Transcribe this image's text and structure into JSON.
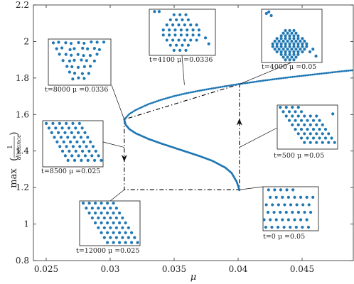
{
  "chart_data": {
    "type": "scatter",
    "xlabel": "μ",
    "ylabel_prefix": "max",
    "ylabel_numerator": "1",
    "ylabel_denominator": "distance",
    "xlim": [
      0.024,
      0.049
    ],
    "ylim": [
      0.8,
      2.2
    ],
    "xticks": [
      0.025,
      0.03,
      0.035,
      0.04,
      0.045
    ],
    "xtick_labels": [
      "0.025",
      "0.03",
      "0.035",
      "0.04",
      "0.045"
    ],
    "yticks": [
      0.8,
      1.0,
      1.2,
      1.4,
      1.6,
      1.8,
      2.0,
      2.2
    ],
    "ytick_labels": [
      "0.8",
      "1",
      "1.2",
      "1.4",
      "1.6",
      "1.8",
      "2",
      "2.2"
    ],
    "grid": false,
    "series_color": "#1f77b4",
    "branch_upper": {
      "x": [
        0.0311,
        0.0315,
        0.032,
        0.033,
        0.034,
        0.035,
        0.036,
        0.037,
        0.038,
        0.039,
        0.04,
        0.041,
        0.042,
        0.043,
        0.044,
        0.045,
        0.046,
        0.047,
        0.048,
        0.0489
      ],
      "y": [
        1.573,
        1.603,
        1.625,
        1.657,
        1.681,
        1.701,
        1.717,
        1.731,
        1.743,
        1.755,
        1.766,
        1.776,
        1.786,
        1.795,
        1.804,
        1.812,
        1.82,
        1.828,
        1.836,
        1.842
      ]
    },
    "branch_middle": {
      "x": [
        0.0311,
        0.0312,
        0.0315,
        0.032,
        0.033,
        0.034,
        0.035,
        0.036,
        0.037,
        0.038,
        0.039,
        0.0395,
        0.0399,
        0.0401
      ],
      "y": [
        1.573,
        1.545,
        1.52,
        1.497,
        1.466,
        1.441,
        1.418,
        1.395,
        1.372,
        1.346,
        1.309,
        1.279,
        1.23,
        1.186
      ]
    },
    "hysteresis_loop": [
      {
        "x": 0.0311,
        "y": 1.573
      },
      {
        "x": 0.0311,
        "y": 1.188
      },
      {
        "x": 0.0401,
        "y": 1.188
      },
      {
        "x": 0.0401,
        "y": 1.766
      },
      {
        "x": 0.0311,
        "y": 1.573
      }
    ],
    "arrows": [
      {
        "x": 0.0311,
        "y": 1.36,
        "direction": "down"
      },
      {
        "x": 0.0401,
        "y": 1.56,
        "direction": "up"
      }
    ],
    "insets": [
      {
        "label": "t=8000 μ =0.0336",
        "anchor": {
          "x": 0.0311,
          "y": 1.573
        }
      },
      {
        "label": "t=4100 μ =0.0336",
        "anchor": {
          "x": 0.0358,
          "y": 1.762
        }
      },
      {
        "label": "t=4000 μ =0.05",
        "anchor": {
          "x": 0.0401,
          "y": 1.766
        }
      },
      {
        "label": "t=8500 μ =0.025",
        "anchor": {
          "x": 0.0311,
          "y": 1.42
        }
      },
      {
        "label": "t=500 μ =0.05",
        "anchor": {
          "x": 0.0401,
          "y": 1.42
        }
      },
      {
        "label": "t=12000 μ =0.025",
        "anchor": {
          "x": 0.0311,
          "y": 1.188
        }
      },
      {
        "label": "t=0 μ =0.05",
        "anchor": {
          "x": 0.0401,
          "y": 1.188
        }
      }
    ]
  }
}
